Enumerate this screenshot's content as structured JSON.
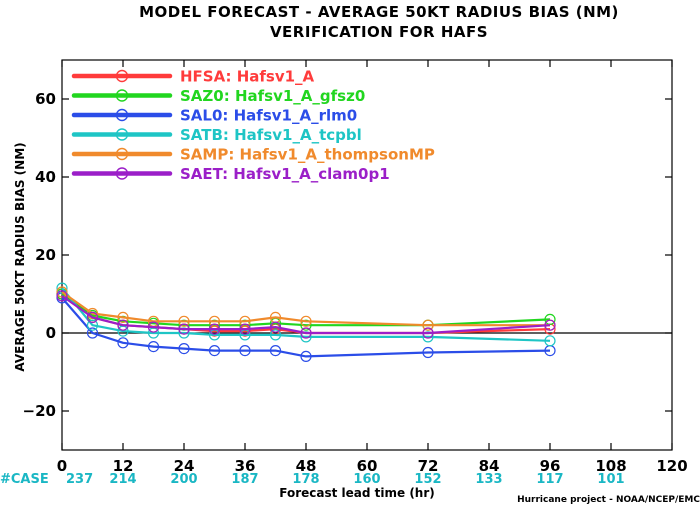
{
  "chart_data": {
    "type": "line",
    "title": "MODEL FORECAST - AVERAGE 50KT RADIUS BIAS (NM)",
    "subtitle": "VERIFICATION FOR HAFS",
    "xlabel": "Forecast lead time (hr)",
    "ylabel": "AVERAGE 50KT RADIUS BIAS (NM)",
    "xlim": [
      0,
      120
    ],
    "ylim": [
      -30,
      70
    ],
    "xticks": [
      0,
      12,
      24,
      36,
      48,
      60,
      72,
      84,
      96,
      108,
      120
    ],
    "yticks": [
      -20,
      0,
      20,
      40,
      60
    ],
    "zero_line": true,
    "grid": false,
    "legend_position": "top-left",
    "credit": "Hurricane project - NOAA/NCEP/EMC",
    "case_label": "#CASE",
    "cases": [
      {
        "x": 0,
        "n": "237"
      },
      {
        "x": 12,
        "n": "214"
      },
      {
        "x": 24,
        "n": "200"
      },
      {
        "x": 36,
        "n": "187"
      },
      {
        "x": 48,
        "n": "178"
      },
      {
        "x": 60,
        "n": "160"
      },
      {
        "x": 72,
        "n": "152"
      },
      {
        "x": 84,
        "n": "133"
      },
      {
        "x": 96,
        "n": "117"
      },
      {
        "x": 108,
        "n": "101"
      }
    ],
    "series": [
      {
        "name": "HFSA:  Hafsv1_A",
        "color": "#ff3b3b",
        "x": [
          0,
          6,
          12,
          18,
          24,
          30,
          36,
          42,
          48,
          72,
          96
        ],
        "y": [
          10,
          4,
          2,
          1.5,
          1,
          0.5,
          0.5,
          1,
          0,
          0,
          1
        ]
      },
      {
        "name": "SAZ0:  Hafsv1_A_gfsz0",
        "color": "#21d61f",
        "x": [
          0,
          6,
          12,
          18,
          24,
          30,
          36,
          42,
          48,
          72,
          96
        ],
        "y": [
          10,
          4.5,
          3,
          2.5,
          2,
          2,
          2,
          2.5,
          2,
          2,
          3.5
        ]
      },
      {
        "name": "SAL0:  Hafsv1_A_rlm0",
        "color": "#2b4de8",
        "x": [
          0,
          6,
          12,
          18,
          24,
          30,
          36,
          42,
          48,
          72,
          96
        ],
        "y": [
          9,
          0,
          -2.5,
          -3.5,
          -4,
          -4.5,
          -4.5,
          -4.5,
          -6,
          -5,
          -4.5
        ]
      },
      {
        "name": "SATB:  Hafsv1_A_tcpbl",
        "color": "#1ec5c5",
        "x": [
          0,
          6,
          12,
          18,
          24,
          30,
          36,
          42,
          48,
          72,
          96
        ],
        "y": [
          11.5,
          2,
          0.5,
          0,
          0,
          -0.5,
          -0.5,
          -0.5,
          -1,
          -1,
          -2
        ]
      },
      {
        "name": "SAMP:  Hafsv1_A_thompsonMP",
        "color": "#f08a2c",
        "x": [
          0,
          6,
          12,
          18,
          24,
          30,
          36,
          42,
          48,
          72,
          96
        ],
        "y": [
          10.5,
          5,
          4,
          3,
          3,
          3,
          3,
          4,
          3,
          2,
          2
        ]
      },
      {
        "name": "SAET:  Hafsv1_A_clam0p1",
        "color": "#9b1fc8",
        "x": [
          0,
          6,
          12,
          18,
          24,
          30,
          36,
          42,
          48,
          72,
          96
        ],
        "y": [
          9.5,
          4,
          2,
          1.5,
          1,
          1,
          1,
          1.5,
          0,
          0,
          2
        ]
      }
    ]
  }
}
